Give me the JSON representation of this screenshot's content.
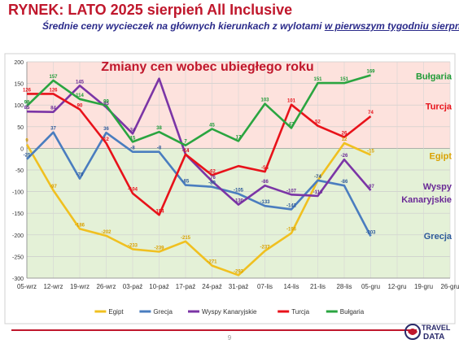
{
  "header": {
    "title": "RYNEK: LATO 2025 sierpień All Inclusive",
    "subtitle_pre": "Średnie ceny wycieczek na głównych kierunkach z wylotami ",
    "subtitle_underlined": "w pierwszym tygodniu sierpnia"
  },
  "chart_data": {
    "type": "line",
    "title": "Zmiany cen wobec ubiegłego roku",
    "ylim": [
      -300,
      200
    ],
    "yticks": [
      200,
      150,
      100,
      50,
      0,
      -50,
      -100,
      -150,
      -200,
      -250,
      -300
    ],
    "categories": [
      "05-wrz",
      "12-wrz",
      "19-wrz",
      "26-wrz",
      "03-paź",
      "10-paź",
      "17-paź",
      "24-paź",
      "31-paź",
      "07-lis",
      "14-lis",
      "21-lis",
      "28-lis",
      "05-gru",
      "12-gru",
      "19-gru",
      "26-gru"
    ],
    "legend_position": "bottom",
    "series": [
      {
        "name": "Egipt",
        "color": "#f0c020",
        "label_color": "#d9a100",
        "values": [
          9,
          -97,
          -186,
          -202,
          -233,
          -239,
          -215,
          -271,
          -293,
          -237,
          -196,
          -74,
          12,
          -15,
          null,
          null,
          null
        ],
        "label_values": [
          9,
          -97,
          -186,
          -202,
          -233,
          -239,
          -215,
          -271,
          -293,
          -237,
          -196,
          -74,
          12,
          -15
        ]
      },
      {
        "name": "Grecja",
        "color": "#4a7dbf",
        "label_color": "#2e5a9a",
        "values": [
          -25,
          37,
          -70,
          36,
          -8,
          -8,
          -85,
          -89,
          -105,
          -133,
          -141,
          -74,
          -86,
          -203,
          null,
          null,
          null
        ],
        "label_values": [
          -25,
          37,
          -70,
          36,
          -8,
          -8,
          -85,
          -89,
          -105,
          -133,
          -141,
          -74,
          -86,
          -203
        ]
      },
      {
        "name": "Wyspy Kanaryjskie",
        "color": "#7b35a6",
        "label_color": "#6a2a96",
        "values": [
          85,
          84,
          145,
          95,
          34,
          161,
          -14,
          -76,
          -130,
          -86,
          -107,
          -110,
          -26,
          -97,
          null,
          null,
          null
        ],
        "label_values": [
          85,
          84,
          145,
          95,
          34,
          null,
          -14,
          -76,
          -130,
          -86,
          -107,
          -110,
          -26,
          -97
        ]
      },
      {
        "name": "Turcja",
        "color": "#e8121a",
        "label_color": "#e8121a",
        "values": [
          126,
          126,
          90,
          12,
          -104,
          -154,
          -14,
          -62,
          -41,
          -54,
          101,
          52,
          26,
          74,
          null,
          null,
          null
        ],
        "label_values": [
          126,
          126,
          90,
          12,
          -104,
          -154,
          -14,
          -62,
          null,
          -54,
          101,
          52,
          26,
          74
        ]
      },
      {
        "name": "Bułgaria",
        "color": "#2aa540",
        "label_color": "#1e9a36",
        "values": [
          98,
          157,
          114,
          99,
          15,
          38,
          7,
          45,
          17,
          103,
          47,
          151,
          151,
          169,
          null,
          null,
          null
        ],
        "label_values": [
          98,
          157,
          114,
          99,
          15,
          38,
          7,
          45,
          17,
          103,
          47,
          151,
          151,
          169
        ]
      }
    ],
    "side_labels": [
      {
        "series": "Bułgaria",
        "text": "Bułgaria",
        "y": 160
      },
      {
        "series": "Turcja",
        "text": "Turcja",
        "y": 90
      },
      {
        "series": "Egipt",
        "text": "Egipt",
        "y": -25
      },
      {
        "series": "Wyspy Kanaryjskie",
        "text": "Wyspy",
        "y": -95
      },
      {
        "series": "Wyspy Kanaryjskie",
        "text": "Kanaryjskie",
        "y": -125
      },
      {
        "series": "Grecja",
        "text": "Grecja",
        "y": -210
      }
    ],
    "colors": {
      "positive_band": "#fde2dd",
      "negative_band": "#e4f1d7"
    }
  },
  "footer": {
    "page_number": "9",
    "logo_line1": "TRAVEL",
    "logo_line2": "DATA"
  }
}
